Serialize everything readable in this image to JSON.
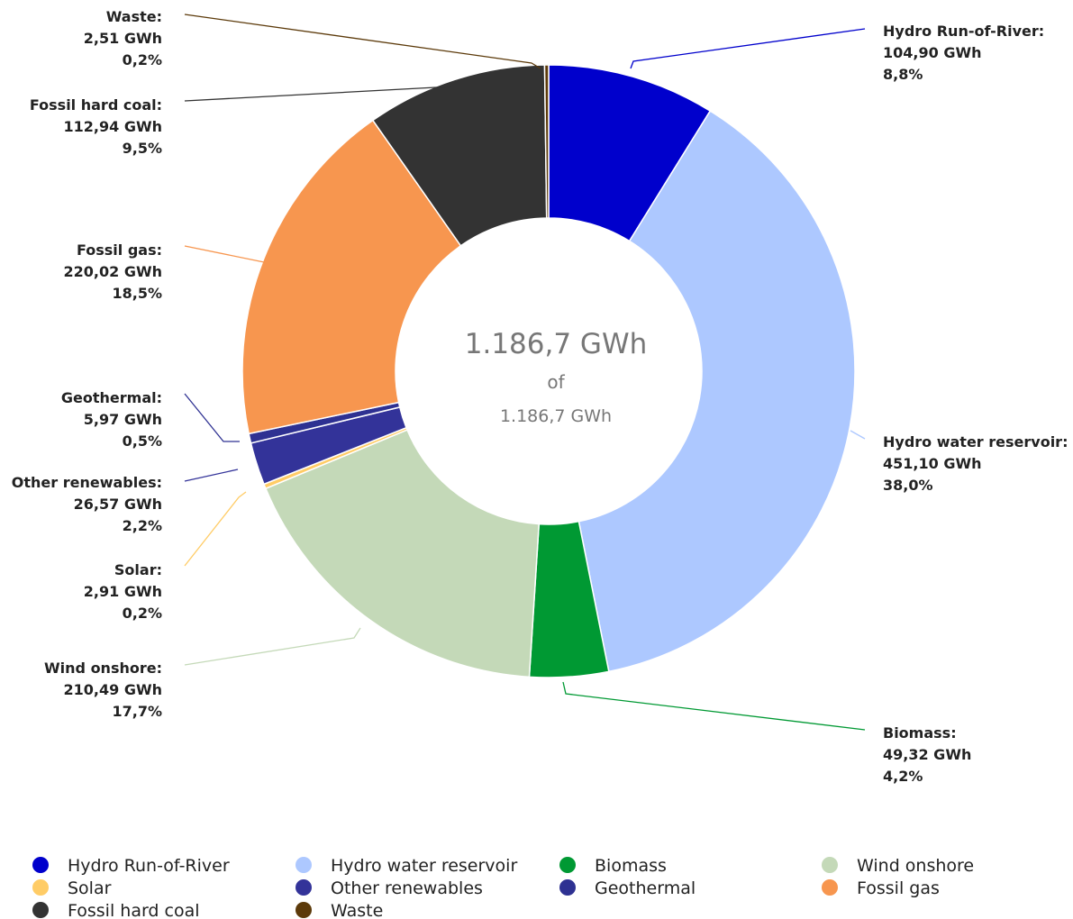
{
  "chart_data": {
    "type": "pie",
    "donut": true,
    "unit": "GWh",
    "categories": [
      "Hydro Run-of-River",
      "Hydro water reservoir",
      "Biomass",
      "Wind onshore",
      "Solar",
      "Other renewables",
      "Geothermal",
      "Fossil gas",
      "Fossil hard coal",
      "Waste"
    ],
    "slice_labels": [
      "Hydro Run-of-River:",
      "Hydro water reservoir:",
      "Biomass:",
      "Wind onshore:",
      "Solar:",
      "Other renewables:",
      "Geothermal:",
      "Fossil gas:",
      "Fossil hard coal:",
      "Waste:"
    ],
    "values": [
      104.9,
      451.1,
      49.32,
      210.49,
      2.91,
      26.57,
      5.97,
      220.02,
      112.94,
      2.51
    ],
    "value_labels": [
      "104,90 GWh",
      "451,10 GWh",
      "49,32 GWh",
      "210,49 GWh",
      "2,91 GWh",
      "26,57 GWh",
      "5,97 GWh",
      "220,02 GWh",
      "112,94 GWh",
      "2,51 GWh"
    ],
    "percents": [
      8.8,
      38.0,
      4.2,
      17.7,
      0.2,
      2.2,
      0.5,
      18.5,
      9.5,
      0.2
    ],
    "percent_labels": [
      "8,8%",
      "38,0%",
      "4,2%",
      "17,7%",
      "0,2%",
      "2,2%",
      "0,5%",
      "18,5%",
      "9,5%",
      "0,2%"
    ],
    "colors": [
      "#0000cc",
      "#adc8ff",
      "#009933",
      "#c4d9b8",
      "#ffcc66",
      "#333399",
      "#2e3192",
      "#f7964f",
      "#333333",
      "#5c3a0a"
    ],
    "center": {
      "total_label": "1.186,7 GWh",
      "of": "of",
      "capacity_label": "1.186,7 GWh"
    },
    "legend": true
  }
}
